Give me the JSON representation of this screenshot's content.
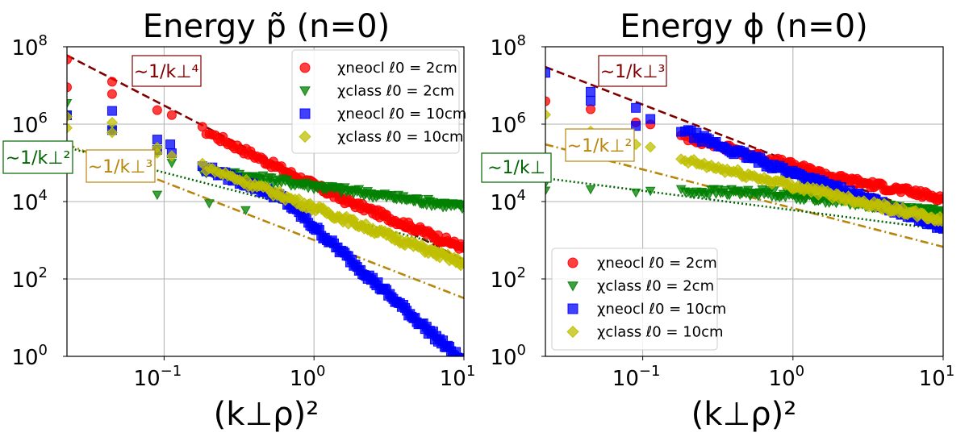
{
  "chart_data": [
    {
      "type": "scatter",
      "title": "Energy p̃ (n=0)",
      "xlabel": "(k⊥ρ)²",
      "ylabel": "",
      "xscale": "log",
      "yscale": "log",
      "xlim": [
        0.0225,
        10
      ],
      "ylim": [
        1,
        100000000
      ],
      "xticks": [
        {
          "base": "10",
          "exp": "−1"
        },
        {
          "base": "10",
          "exp": "0"
        },
        {
          "base": "10",
          "exp": "1"
        }
      ],
      "yticks": [
        {
          "base": "10",
          "exp": "8"
        },
        {
          "base": "10",
          "exp": "6"
        },
        {
          "base": "10",
          "exp": "4"
        },
        {
          "base": "10",
          "exp": "2"
        },
        {
          "base": "10",
          "exp": "0"
        }
      ],
      "legend_position": "top-right",
      "series": [
        {
          "name": "χneocl ℓ0 = 2cm",
          "marker": "circle",
          "color": "#ff0000",
          "x_range": [
            0.0225,
            10
          ],
          "y_start": 40000000,
          "slope": -1.93,
          "knee_x": 1.5,
          "slope2": -1.55,
          "low_outliers": [
            [
              0.0225,
              9000000
            ],
            [
              0.045,
              6000000
            ]
          ]
        },
        {
          "name": "χclass ℓ0 = 2cm",
          "marker": "triangle-down",
          "color": "#008000",
          "x_range": [
            0.0225,
            10
          ],
          "y_start": 2000000,
          "slope": -1.75,
          "knee_x": 0.15,
          "slope2": -0.55,
          "low_outliers": [
            [
              0.0225,
              3500000
            ],
            [
              0.09,
              15000
            ],
            [
              0.2,
              9000
            ],
            [
              0.35,
              6000
            ]
          ]
        },
        {
          "name": "χneocl ℓ0 = 10cm",
          "marker": "square",
          "color": "#0000ff",
          "x_range": [
            0.0225,
            10
          ],
          "y_start": 1800000,
          "slope": -1.5,
          "knee_x": 0.6,
          "slope2": -3.5,
          "low_outliers": [
            [
              0.045,
              2200000
            ],
            [
              0.09,
              400000
            ],
            [
              0.11,
              300000
            ]
          ]
        },
        {
          "name": "χclass ℓ0 = 10cm",
          "marker": "diamond",
          "color": "#bfbf00",
          "x_range": [
            0.0225,
            10
          ],
          "y_start": 1500000,
          "slope": -1.4,
          "knee_x": 0.3,
          "slope2": -1.45,
          "low_outliers": [
            [
              0.0225,
              800000
            ],
            [
              0.045,
              1100000
            ],
            [
              0.09,
              250000
            ]
          ]
        }
      ],
      "fits": [
        {
          "label": "∼1/k⊥⁴",
          "color": "#800000",
          "style": "dashed",
          "slope": -2.0,
          "y_at_xmin": 60000000
        },
        {
          "label": "∼1/k⊥³",
          "color": "#b8860b",
          "style": "dashdot",
          "slope": -1.5,
          "y_at_xmin": 300000
        },
        {
          "label": "∼1/k⊥²",
          "color": "#006400",
          "style": "dotted",
          "slope": -1.0,
          "y_at_xmin": 250000
        }
      ]
    },
    {
      "type": "scatter",
      "title": "Energy ϕ (n=0)",
      "xlabel": "(k⊥ρ)²",
      "ylabel": "",
      "xscale": "log",
      "yscale": "log",
      "xlim": [
        0.0225,
        10
      ],
      "ylim": [
        1,
        100000000
      ],
      "xticks": [
        {
          "base": "10",
          "exp": "−1"
        },
        {
          "base": "10",
          "exp": "0"
        },
        {
          "base": "10",
          "exp": "1"
        }
      ],
      "yticks": [
        {
          "base": "10",
          "exp": "8"
        },
        {
          "base": "10",
          "exp": "6"
        },
        {
          "base": "10",
          "exp": "4"
        },
        {
          "base": "10",
          "exp": "2"
        },
        {
          "base": "10",
          "exp": "0"
        }
      ],
      "legend_position": "lower-left",
      "series": [
        {
          "name": "χneocl ℓ0 = 2cm",
          "marker": "circle",
          "color": "#ff0000",
          "x_range": [
            0.0225,
            10
          ],
          "y_start": 4500000,
          "slope": -1.05,
          "knee_x": 2.0,
          "slope2": -0.75,
          "low_outliers": []
        },
        {
          "name": "χclass ℓ0 = 2cm",
          "marker": "triangle-down",
          "color": "#008000",
          "x_range": [
            0.0225,
            10
          ],
          "y_start": 20000,
          "slope": -0.05,
          "knee_x": 0.7,
          "slope2": -0.45,
          "low_outliers": [
            [
              0.0225,
              30000
            ]
          ]
        },
        {
          "name": "χneocl ℓ0 = 10cm",
          "marker": "square",
          "color": "#0000ff",
          "x_range": [
            0.0225,
            10
          ],
          "y_start": 20000000,
          "slope": -1.6,
          "knee_x": 0.4,
          "slope2": -1.4,
          "low_outliers": [
            [
              0.045,
              4000000
            ],
            [
              0.09,
              900000
            ]
          ]
        },
        {
          "name": "χclass ℓ0 = 10cm",
          "marker": "diamond",
          "color": "#bfbf00",
          "x_range": [
            0.0225,
            10
          ],
          "y_start": 1500000,
          "slope": -1.2,
          "knee_x": 0.2,
          "slope2": -0.9,
          "low_outliers": [
            [
              0.045,
              200000
            ]
          ]
        }
      ],
      "fits": [
        {
          "label": "∼1/k⊥³",
          "color": "#800000",
          "style": "dashed",
          "slope": -1.5,
          "y_at_xmin": 30000000
        },
        {
          "label": "∼1/k⊥²",
          "color": "#b8860b",
          "style": "dashdot",
          "slope": -1.0,
          "y_at_xmin": 300000
        },
        {
          "label": "∼1/k⊥",
          "color": "#006400",
          "style": "dotted",
          "slope": -0.5,
          "y_at_xmin": 40000
        }
      ]
    }
  ]
}
